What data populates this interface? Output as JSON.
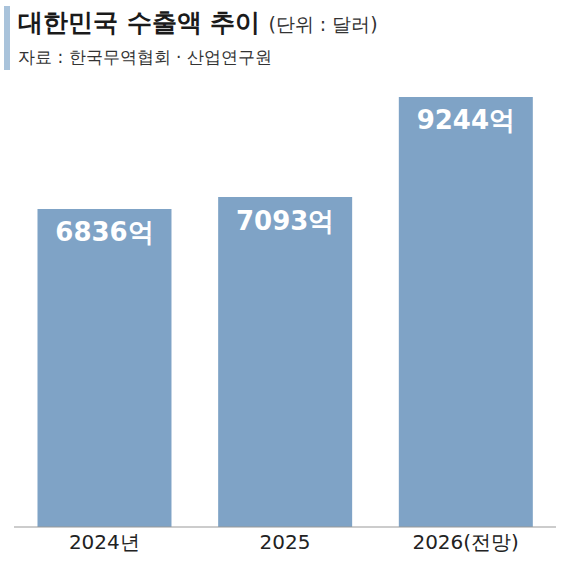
{
  "chart_data": {
    "type": "bar",
    "title": "대한민국 수출액 추이",
    "subtitle": "(단위 : 달러)",
    "source": "자료 : 한국무역협회 · 산업연구원",
    "categories": [
      "2024년",
      "2025",
      "2026(전망)"
    ],
    "values": [
      6836,
      7093,
      9244
    ],
    "value_labels": [
      "6836억",
      "7093억",
      "9244억"
    ],
    "data_labels": true,
    "color": "#7fa3c6",
    "ylim": [
      0,
      9244
    ],
    "tick_labels": "x",
    "grid": false
  }
}
